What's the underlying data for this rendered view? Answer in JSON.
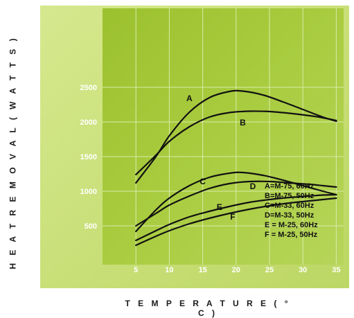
{
  "chart_data": {
    "type": "line",
    "xlabel": "T E M P E R A T U R E ( ° C )",
    "ylabel": "H E A T   R E M O V A L ( W A T T S )",
    "x_ticks": [
      "5",
      "10",
      "15",
      "20",
      "25",
      "30",
      "35"
    ],
    "y_ticks": [
      "500",
      "1000",
      "1500",
      "2000",
      "2500"
    ],
    "xlim": [
      0,
      36
    ],
    "ylim": [
      0,
      2600
    ],
    "grid": true,
    "legend_position": "bottom-right",
    "legend": [
      "A=M-75, 60Hz",
      "B=M-75, 50Hz",
      "C=M-33, 60Hz",
      "D=M-33, 50Hz",
      "E = M-25, 60Hz",
      "F = M-25, 50Hz"
    ],
    "series": [
      {
        "name": "A",
        "x": [
          5,
          8,
          10,
          13,
          16,
          19,
          21,
          24,
          27,
          30,
          33,
          35
        ],
        "y": [
          1120,
          1500,
          1800,
          2140,
          2350,
          2440,
          2445,
          2390,
          2290,
          2180,
          2070,
          2010
        ]
      },
      {
        "name": "B",
        "x": [
          5,
          8,
          10,
          13,
          16,
          19,
          22,
          25,
          28,
          31,
          33,
          35
        ],
        "y": [
          1240,
          1520,
          1720,
          1930,
          2070,
          2135,
          2155,
          2150,
          2125,
          2090,
          2060,
          2020
        ]
      },
      {
        "name": "C",
        "x": [
          5,
          8,
          10,
          13,
          16,
          19,
          21,
          24,
          27,
          30,
          33,
          35
        ],
        "y": [
          420,
          730,
          900,
          1080,
          1200,
          1260,
          1270,
          1230,
          1160,
          1080,
          1000,
          950
        ]
      },
      {
        "name": "D",
        "x": [
          5,
          8,
          10,
          13,
          16,
          19,
          22,
          25,
          28,
          31,
          33,
          35
        ],
        "y": [
          500,
          680,
          800,
          930,
          1040,
          1110,
          1140,
          1140,
          1120,
          1100,
          1080,
          1060
        ]
      },
      {
        "name": "E",
        "x": [
          5,
          8,
          10,
          13,
          16,
          19,
          22,
          25,
          28,
          31,
          33,
          35
        ],
        "y": [
          290,
          430,
          520,
          630,
          710,
          780,
          840,
          880,
          910,
          930,
          945,
          950
        ]
      },
      {
        "name": "F",
        "x": [
          5,
          8,
          10,
          13,
          16,
          19,
          22,
          25,
          28,
          31,
          33,
          35
        ],
        "y": [
          220,
          350,
          430,
          530,
          610,
          680,
          740,
          790,
          830,
          860,
          880,
          900
        ]
      }
    ],
    "curve_labels": [
      {
        "text": "A",
        "x": 13,
        "y": 2300
      },
      {
        "text": "B",
        "x": 21,
        "y": 1950
      },
      {
        "text": "C",
        "x": 15,
        "y": 1100
      },
      {
        "text": "D",
        "x": 22.5,
        "y": 1030
      },
      {
        "text": "E",
        "x": 17.5,
        "y": 730
      },
      {
        "text": "F",
        "x": 19.5,
        "y": 590
      }
    ],
    "colors": {
      "outer": "#c6de72",
      "inner": "#a3c737",
      "grid": "#d9ecaa",
      "line": "#111111",
      "tick_text": "#ffffff"
    }
  }
}
